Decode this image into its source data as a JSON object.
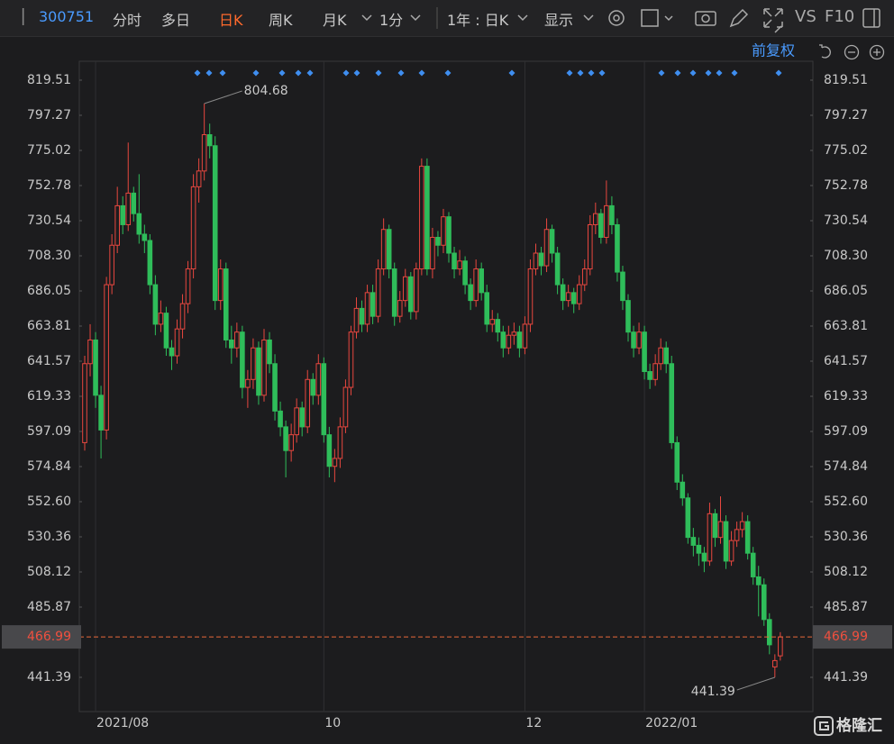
{
  "toolbar": {
    "code": "300751",
    "tabs": [
      "分时",
      "多日",
      "日K",
      "周K",
      "月K",
      "1分",
      "1年 : 日K",
      "显示"
    ],
    "vs": "VS",
    "f10": "F10",
    "adjust": "前复权",
    "logo": "格隆汇"
  },
  "chart_data": {
    "type": "candlestick",
    "up_color": "#e8473f",
    "down_color": "#2fbd5a",
    "last_price": 466.99,
    "last_price_color": "#e8683a",
    "ylim": [
      419.72,
      831.49
    ],
    "yticks": [
      819.51,
      797.27,
      775.02,
      752.78,
      730.54,
      {
        "value": 708.3,
        "label": "708.30"
      },
      686.05,
      663.81,
      641.57,
      619.33,
      597.09,
      574.84,
      {
        "value": 552.6,
        "label": "552.60"
      },
      530.36,
      508.12,
      485.87,
      441.39
    ],
    "xgrid": true,
    "categories": [
      null,
      null,
      "2021/08",
      null,
      null,
      null,
      null,
      null,
      null,
      null,
      null,
      null,
      null,
      null,
      null,
      null,
      null,
      null,
      null,
      null,
      null,
      null,
      null,
      null,
      null,
      null,
      null,
      null,
      null,
      null,
      null,
      null,
      null,
      null,
      null,
      null,
      null,
      null,
      null,
      null,
      null,
      null,
      null,
      null,
      "10",
      null,
      null,
      null,
      null,
      null,
      null,
      null,
      null,
      null,
      null,
      null,
      null,
      null,
      null,
      null,
      null,
      null,
      null,
      null,
      null,
      null,
      null,
      null,
      null,
      null,
      null,
      null,
      null,
      null,
      null,
      null,
      null,
      null,
      null,
      null,
      null,
      "12",
      null,
      null,
      null,
      null,
      null,
      null,
      null,
      null,
      null,
      null,
      null,
      null,
      null,
      null,
      null,
      null,
      null,
      null,
      null,
      null,
      null,
      "2022/01",
      null,
      null,
      null,
      null,
      null,
      null,
      null,
      null,
      null,
      null,
      null,
      null,
      null,
      null,
      null,
      null,
      null,
      null,
      null,
      null,
      null,
      null,
      null,
      null,
      null
    ],
    "ohlc": [
      [
        590,
        645,
        585,
        640
      ],
      [
        640,
        665,
        632,
        655
      ],
      [
        655,
        660,
        612,
        620
      ],
      [
        620,
        626,
        580,
        598
      ],
      [
        598,
        695,
        592,
        690
      ],
      [
        690,
        722,
        684,
        715
      ],
      [
        715,
        752,
        710,
        740
      ],
      [
        740,
        746,
        722,
        728
      ],
      [
        728,
        780,
        724,
        748
      ],
      [
        748,
        752,
        730,
        735
      ],
      [
        735,
        760,
        716,
        722
      ],
      [
        722,
        728,
        710,
        718
      ],
      [
        718,
        722,
        684,
        690
      ],
      [
        690,
        696,
        658,
        665
      ],
      [
        665,
        680,
        660,
        672
      ],
      [
        672,
        676,
        645,
        650
      ],
      [
        650,
        655,
        636,
        645
      ],
      [
        645,
        668,
        640,
        662
      ],
      [
        662,
        684,
        656,
        678
      ],
      [
        678,
        705,
        672,
        700
      ],
      [
        700,
        760,
        694,
        752
      ],
      [
        752,
        770,
        742,
        762
      ],
      [
        762,
        804.68,
        756,
        785
      ],
      [
        785,
        792,
        770,
        778
      ],
      [
        778,
        784,
        674,
        680
      ],
      [
        680,
        706,
        674,
        700
      ],
      [
        700,
        704,
        650,
        655
      ],
      [
        655,
        664,
        640,
        650
      ],
      [
        650,
        666,
        644,
        660
      ],
      [
        660,
        664,
        618,
        625
      ],
      [
        625,
        636,
        612,
        630
      ],
      [
        630,
        656,
        624,
        650
      ],
      [
        650,
        654,
        614,
        620
      ],
      [
        620,
        662,
        616,
        655
      ],
      [
        655,
        660,
        634,
        640
      ],
      [
        640,
        646,
        604,
        610
      ],
      [
        610,
        616,
        594,
        600
      ],
      [
        600,
        604,
        568,
        585
      ],
      [
        585,
        602,
        578,
        595
      ],
      [
        595,
        618,
        590,
        612
      ],
      [
        612,
        616,
        594,
        600
      ],
      [
        600,
        636,
        596,
        630
      ],
      [
        630,
        634,
        614,
        620
      ],
      [
        620,
        646,
        614,
        640
      ],
      [
        640,
        644,
        590,
        595
      ],
      [
        595,
        600,
        568,
        575
      ],
      [
        575,
        586,
        565,
        580
      ],
      [
        580,
        606,
        574,
        600
      ],
      [
        600,
        630,
        596,
        625
      ],
      [
        625,
        664,
        620,
        660
      ],
      [
        660,
        682,
        656,
        675
      ],
      [
        675,
        680,
        660,
        665
      ],
      [
        665,
        690,
        660,
        685
      ],
      [
        685,
        690,
        665,
        670
      ],
      [
        670,
        706,
        666,
        700
      ],
      [
        700,
        732,
        696,
        725
      ],
      [
        725,
        728,
        694,
        700
      ],
      [
        700,
        704,
        664,
        670
      ],
      [
        670,
        686,
        666,
        680
      ],
      [
        680,
        700,
        676,
        695
      ],
      [
        695,
        698,
        668,
        673
      ],
      [
        673,
        704,
        668,
        700
      ],
      [
        700,
        770,
        696,
        765
      ],
      [
        765,
        770,
        696,
        700
      ],
      [
        700,
        726,
        694,
        720
      ],
      [
        720,
        724,
        708,
        715
      ],
      [
        715,
        738,
        710,
        733
      ],
      [
        733,
        736,
        704,
        710
      ],
      [
        710,
        714,
        694,
        700
      ],
      [
        700,
        712,
        696,
        705
      ],
      [
        705,
        708,
        684,
        690
      ],
      [
        690,
        694,
        674,
        680
      ],
      [
        680,
        706,
        676,
        700
      ],
      [
        700,
        704,
        680,
        685
      ],
      [
        685,
        690,
        660,
        665
      ],
      [
        665,
        674,
        660,
        668
      ],
      [
        668,
        672,
        654,
        660
      ],
      [
        660,
        664,
        644,
        650
      ],
      [
        650,
        664,
        646,
        658
      ],
      [
        658,
        666,
        652,
        660
      ],
      [
        660,
        664,
        644,
        650
      ],
      [
        650,
        670,
        646,
        665
      ],
      [
        665,
        706,
        660,
        700
      ],
      [
        700,
        716,
        696,
        710
      ],
      [
        710,
        714,
        696,
        702
      ],
      [
        702,
        732,
        698,
        725
      ],
      [
        725,
        728,
        704,
        710
      ],
      [
        710,
        714,
        684,
        690
      ],
      [
        690,
        694,
        674,
        680
      ],
      [
        680,
        690,
        676,
        685
      ],
      [
        685,
        688,
        672,
        678
      ],
      [
        678,
        696,
        674,
        690
      ],
      [
        690,
        706,
        686,
        700
      ],
      [
        700,
        734,
        696,
        728
      ],
      [
        728,
        742,
        722,
        735
      ],
      [
        735,
        738,
        716,
        720
      ],
      [
        720,
        756,
        716,
        740
      ],
      [
        740,
        746,
        722,
        728
      ],
      [
        728,
        732,
        692,
        698
      ],
      [
        698,
        702,
        674,
        680
      ],
      [
        680,
        684,
        654,
        660
      ],
      [
        660,
        664,
        644,
        650
      ],
      [
        650,
        666,
        646,
        660
      ],
      [
        660,
        664,
        630,
        635
      ],
      [
        635,
        640,
        624,
        630
      ],
      [
        630,
        646,
        626,
        640
      ],
      [
        640,
        656,
        636,
        650
      ],
      [
        650,
        654,
        634,
        640
      ],
      [
        640,
        645,
        586,
        590
      ],
      [
        590,
        594,
        560,
        565
      ],
      [
        565,
        570,
        550,
        555
      ],
      [
        555,
        558,
        526,
        530
      ],
      [
        530,
        536,
        518,
        525
      ],
      [
        525,
        530,
        512,
        520
      ],
      [
        520,
        524,
        508,
        515
      ],
      [
        515,
        552,
        512,
        545
      ],
      [
        545,
        548,
        524,
        530
      ],
      [
        530,
        556,
        526,
        540
      ],
      [
        540,
        544,
        510,
        515
      ],
      [
        515,
        534,
        512,
        528
      ],
      [
        528,
        540,
        524,
        535
      ],
      [
        535,
        546,
        530,
        540
      ],
      [
        540,
        544,
        516,
        520
      ],
      [
        520,
        524,
        500,
        505
      ],
      [
        505,
        512,
        480,
        500
      ],
      [
        500,
        504,
        474,
        478
      ],
      [
        478,
        482,
        456,
        462
      ],
      [
        448,
        456,
        441.39,
        452
      ],
      [
        455,
        470,
        452,
        466.99
      ]
    ]
  }
}
